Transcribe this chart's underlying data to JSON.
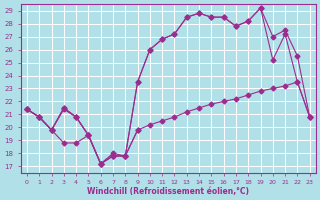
{
  "title": "",
  "xlabel": "Windchill (Refroidissement éolien,°C)",
  "ylabel": "",
  "background_color": "#b2e0e8",
  "grid_color": "#ffffff",
  "line_color": "#9b2d8e",
  "xlim": [
    -0.5,
    23.5
  ],
  "ylim": [
    16.5,
    29.5
  ],
  "yticks": [
    17,
    18,
    19,
    20,
    21,
    22,
    23,
    24,
    25,
    26,
    27,
    28,
    29
  ],
  "xticks": [
    0,
    1,
    2,
    3,
    4,
    5,
    6,
    7,
    8,
    9,
    10,
    11,
    12,
    13,
    14,
    15,
    16,
    17,
    18,
    19,
    20,
    21,
    22,
    23
  ],
  "line1_x": [
    0,
    1,
    2,
    3,
    4,
    5,
    6,
    7,
    8,
    9
  ],
  "line1_y": [
    21.4,
    20.8,
    19.8,
    18.8,
    18.8,
    19.4,
    17.2,
    18.0,
    17.8,
    19.8
  ],
  "line2_x": [
    0,
    1,
    2,
    3,
    4,
    5,
    6,
    7,
    8,
    9,
    10,
    11,
    12,
    13,
    14,
    15,
    16,
    17,
    18,
    19,
    20,
    21,
    22,
    23
  ],
  "line2_y": [
    21.4,
    20.8,
    19.8,
    21.4,
    20.8,
    19.4,
    17.2,
    17.8,
    17.8,
    19.8,
    20.2,
    20.5,
    20.8,
    21.2,
    21.5,
    21.8,
    22.0,
    22.2,
    22.5,
    22.8,
    23.0,
    23.2,
    23.5,
    20.8
  ],
  "line3_x": [
    0,
    1,
    2,
    3,
    4,
    5,
    6,
    7,
    8,
    9,
    10,
    11,
    12,
    13,
    14,
    15,
    16,
    17,
    18,
    19,
    20,
    21,
    22,
    23
  ],
  "line3_y": [
    21.4,
    20.8,
    19.8,
    21.5,
    20.8,
    19.4,
    17.2,
    17.8,
    17.8,
    23.5,
    26.0,
    26.8,
    27.2,
    28.5,
    28.8,
    28.5,
    28.5,
    27.8,
    28.2,
    29.2,
    25.2,
    27.2,
    23.5,
    20.8
  ],
  "line4_x": [
    0,
    1,
    2,
    3,
    4,
    5,
    6,
    7,
    8,
    9,
    10,
    11,
    12,
    13,
    14,
    15,
    16,
    17,
    18,
    19,
    20,
    21,
    22,
    23
  ],
  "line4_y": [
    21.4,
    20.8,
    19.8,
    21.5,
    20.8,
    19.4,
    17.2,
    17.8,
    17.8,
    23.5,
    26.0,
    26.8,
    27.2,
    28.5,
    28.8,
    28.5,
    28.5,
    27.8,
    28.2,
    29.2,
    27.0,
    27.5,
    25.5,
    20.8
  ]
}
